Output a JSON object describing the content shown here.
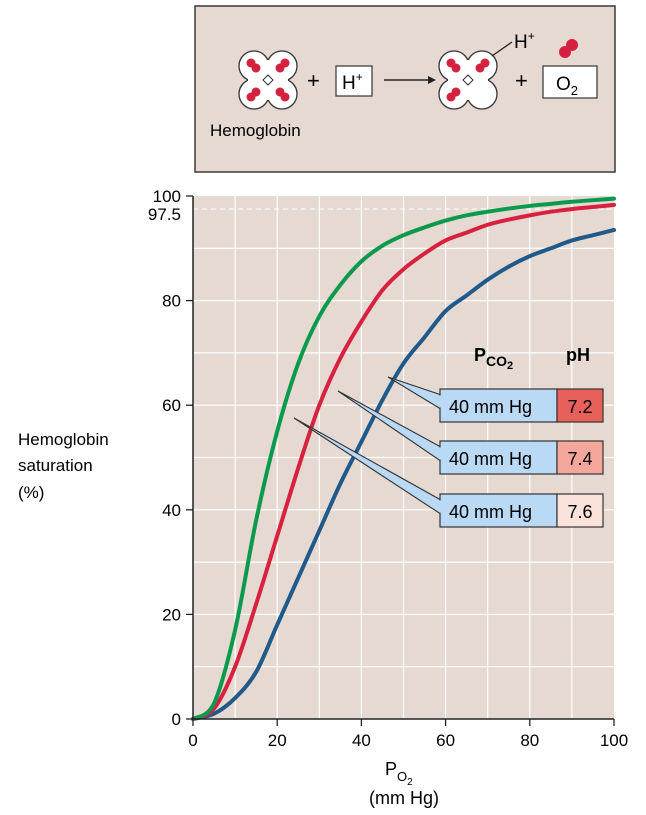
{
  "colors": {
    "panel_bg": "#e5d9d1",
    "panel_border": "#3a3a3a",
    "grid": "#ffffff",
    "ref_line": "#ffffff",
    "curve_ph72": "#1f5a8a",
    "curve_ph74": "#d8203f",
    "curve_ph76": "#0a9a4e",
    "box_pco2": "#b9d9f4",
    "box_ph72": "#e8605a",
    "box_ph74": "#f5a79c",
    "box_ph76": "#fbe3dc",
    "heme_red": "#d6203f"
  },
  "reaction": {
    "hemoglobin_label": "Hemoglobin",
    "plus1": "+",
    "proton_box": "H",
    "proton_sup": "+",
    "bound_proton": "H",
    "bound_proton_sup": "+",
    "plus2": "+",
    "oxygen_box": "O",
    "oxygen_sub": "2",
    "arrow_icon": "right-arrow-icon",
    "molecule_icon": "hemoglobin-molecule-icon",
    "oxygen_icon": "oxygen-molecule-icon"
  },
  "chart_data": {
    "type": "line",
    "xlabel_main": "P",
    "xlabel_sub": "O",
    "xlabel_subsub": "2",
    "xlabel_unit": "(mm Hg)",
    "ylabel": [
      "Hemoglobin",
      "saturation",
      "(%)"
    ],
    "xlim": [
      0,
      100
    ],
    "ylim": [
      0,
      100
    ],
    "x_ticks": [
      0,
      20,
      40,
      60,
      80,
      100
    ],
    "y_ticks": [
      0,
      20,
      40,
      60,
      80,
      100
    ],
    "ref_line": {
      "y": 97.5,
      "label": "97.5"
    },
    "legend_headers": {
      "pco2_main": "P",
      "pco2_sub": "CO",
      "pco2_subsub": "2",
      "ph": "pH"
    },
    "series": [
      {
        "pco2": "40 mm Hg",
        "ph": "7.2",
        "color": "#1f5a8a",
        "swatch": "#e8605a",
        "x": [
          0,
          5,
          10,
          15,
          20,
          25,
          30,
          35,
          40,
          45,
          50,
          55,
          60,
          65,
          70,
          75,
          80,
          85,
          90,
          95,
          100
        ],
        "y": [
          0,
          1,
          4,
          9,
          18,
          27,
          36,
          45,
          53,
          61,
          68,
          73,
          78,
          81,
          84,
          86.5,
          88.5,
          90,
          91.5,
          92.5,
          93.5
        ]
      },
      {
        "pco2": "40 mm Hg",
        "ph": "7.4",
        "color": "#d8203f",
        "swatch": "#f5a79c",
        "x": [
          0,
          5,
          10,
          15,
          20,
          25,
          30,
          35,
          40,
          45,
          50,
          55,
          60,
          65,
          70,
          75,
          80,
          85,
          90,
          95,
          100
        ],
        "y": [
          0,
          2,
          10,
          22,
          35,
          48,
          60,
          69,
          76,
          82,
          86,
          89,
          91.5,
          93,
          94.5,
          95.5,
          96.3,
          97,
          97.5,
          97.9,
          98.3
        ]
      },
      {
        "pco2": "40 mm Hg",
        "ph": "7.6",
        "color": "#0a9a4e",
        "swatch": "#fbe3dc",
        "x": [
          0,
          5,
          10,
          15,
          20,
          25,
          30,
          35,
          40,
          45,
          50,
          55,
          60,
          65,
          70,
          75,
          80,
          85,
          90,
          95,
          100
        ],
        "y": [
          0,
          3,
          17,
          38,
          55,
          68,
          77,
          83,
          87.5,
          90.5,
          92.5,
          94,
          95.3,
          96.3,
          97,
          97.6,
          98.1,
          98.5,
          98.9,
          99.2,
          99.5
        ]
      }
    ]
  }
}
